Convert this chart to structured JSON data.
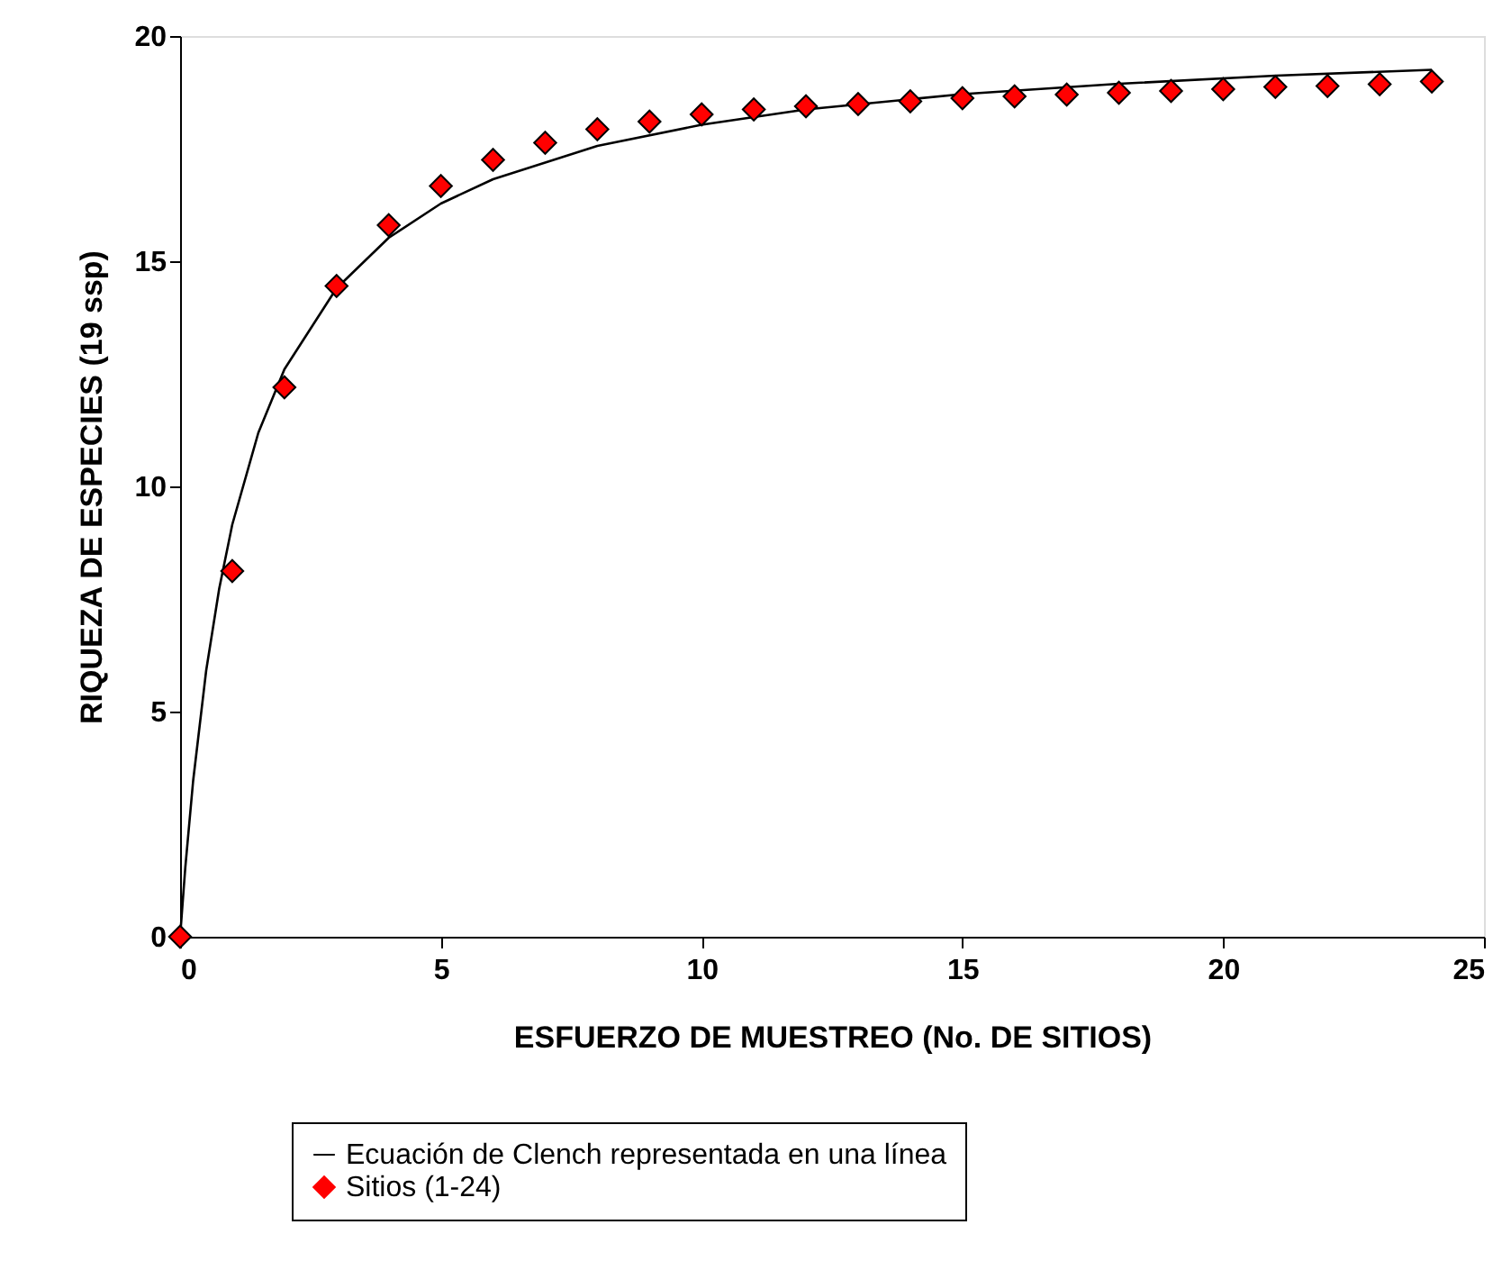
{
  "chart_data": {
    "type": "scatter",
    "xlabel": "ESFUERZO DE MUESTREO (No. DE SITIOS)",
    "ylabel": "RIQUEZA DE ESPECIES (19 ssp)",
    "xlim": [
      0,
      25
    ],
    "xticks": [
      0,
      5,
      10,
      15,
      20,
      25
    ],
    "ylim": [
      0,
      20
    ],
    "yticks": [
      0,
      5,
      10,
      15,
      20
    ],
    "grid": false,
    "legend": "bottom",
    "series": [
      {
        "name": "Ecuación de Clench representada en una línea",
        "type": "line",
        "color": "#000000",
        "marker": "none",
        "line_style": "solid",
        "x": [
          0,
          0.1,
          0.25,
          0.5,
          0.75,
          1,
          1.5,
          2,
          3,
          4,
          5,
          6,
          8,
          10,
          12,
          15,
          18,
          21,
          24
        ],
        "values": [
          0,
          1.54,
          3.46,
          5.91,
          7.73,
          9.15,
          11.19,
          12.6,
          14.4,
          15.52,
          16.28,
          16.82,
          17.56,
          18.03,
          18.37,
          18.71,
          18.94,
          19.12,
          19.25
        ]
      },
      {
        "name": "Sitios (1-24)",
        "type": "scatter",
        "color": "#ff0000",
        "marker": "diamond",
        "x": [
          0,
          1,
          2,
          3,
          4,
          5,
          6,
          7,
          8,
          9,
          10,
          11,
          12,
          13,
          14,
          15,
          16,
          17,
          18,
          19,
          20,
          21,
          22,
          23,
          24
        ],
        "values": [
          0,
          8.12,
          12.2,
          14.45,
          15.8,
          16.67,
          17.25,
          17.63,
          17.93,
          18.1,
          18.26,
          18.37,
          18.44,
          18.49,
          18.55,
          18.62,
          18.66,
          18.7,
          18.74,
          18.78,
          18.82,
          18.87,
          18.89,
          18.93,
          18.99
        ]
      }
    ]
  }
}
